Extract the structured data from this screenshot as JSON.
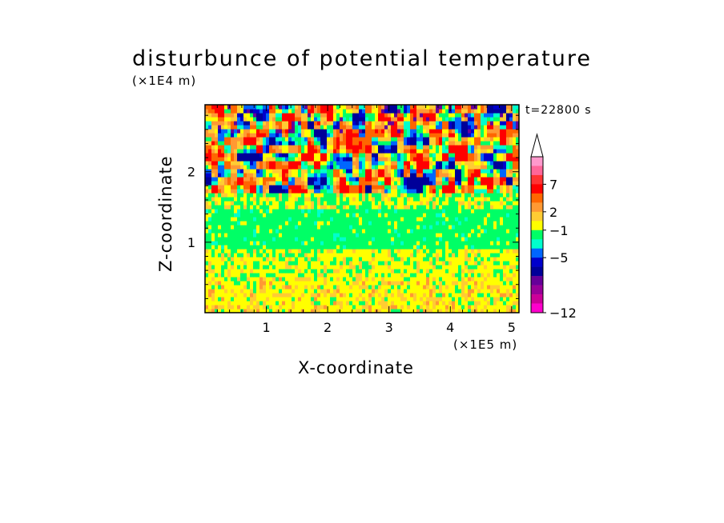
{
  "chart_data": {
    "type": "heatmap",
    "title": "disturbunce of potential temperature",
    "xlabel": "X-coordinate",
    "ylabel": "Z-coordinate",
    "x_unit": "(×1E5 m)",
    "y_unit": "(×1E4 m)",
    "annotation": "t=22800 s",
    "xlim": [
      0,
      5.12
    ],
    "ylim": [
      0,
      2.95
    ],
    "x_ticks": [
      "1",
      "2",
      "3",
      "4",
      "5"
    ],
    "x_tick_values": [
      1,
      2,
      3,
      4,
      5
    ],
    "y_ticks": [
      "1",
      "2"
    ],
    "y_tick_values": [
      1,
      2
    ],
    "colorbar": {
      "labels": [
        "7",
        "2",
        "−1",
        "−5",
        "−12"
      ],
      "label_levels": [
        7,
        2,
        -1,
        -5,
        -12
      ],
      "colors": [
        "#ff99cc",
        "#ff6699",
        "#ff3333",
        "#ff0000",
        "#ff6600",
        "#ff9933",
        "#ffcc33",
        "#ffff00",
        "#00ff66",
        "#00ffcc",
        "#0066ff",
        "#0000cc",
        "#000099",
        "#660099",
        "#990099",
        "#cc0099",
        "#ff00cc"
      ],
      "extend": "max"
    },
    "regions": [
      {
        "z_range": [
          0,
          0.6
        ],
        "dominant_range": "0 to 2",
        "description_level": "low"
      },
      {
        "z_range": [
          0.6,
          1.45
        ],
        "dominant_range": "-1 to 0",
        "description_level": "mid"
      },
      {
        "z_range": [
          1.45,
          2.95
        ],
        "dominant_range": "-12 to 9",
        "description_level": "high"
      }
    ]
  }
}
